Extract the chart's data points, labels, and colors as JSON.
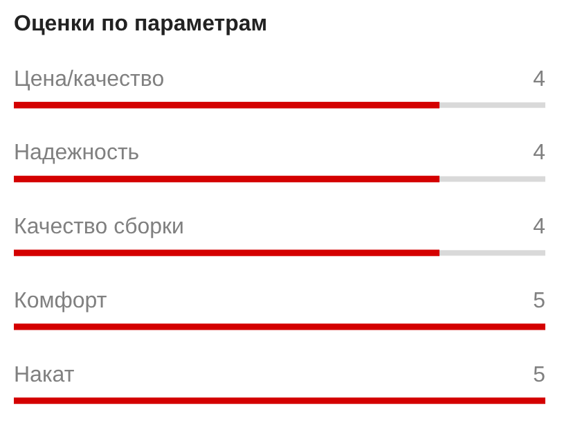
{
  "chart_data": {
    "type": "bar",
    "orientation": "horizontal",
    "title": "Оценки по параметрам",
    "categories": [
      "Цена/качество",
      "Надежность",
      "Качество сборки",
      "Комфорт",
      "Накат"
    ],
    "values": [
      4,
      4,
      4,
      5,
      5
    ],
    "color": "#d40000",
    "xlim": [
      0,
      5
    ],
    "data_labels": true,
    "tick_labels": "y",
    "legend": false
  }
}
